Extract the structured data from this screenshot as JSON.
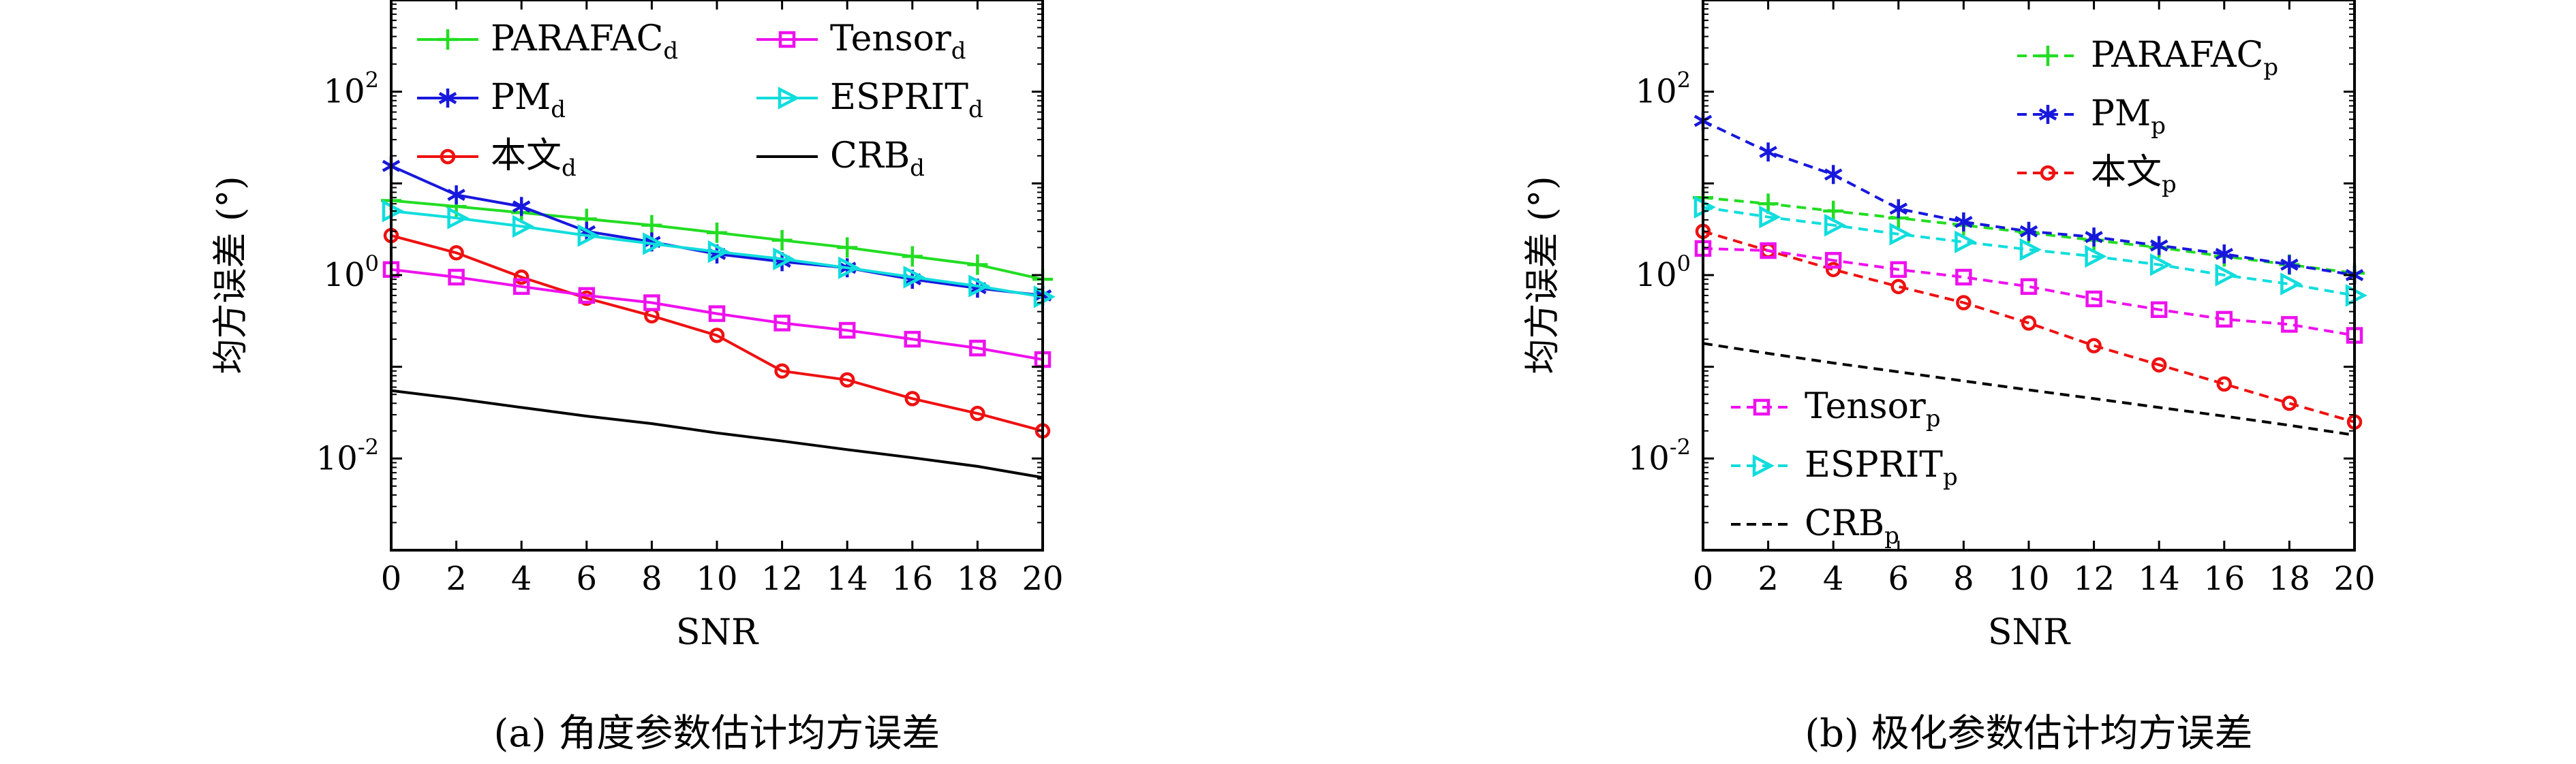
{
  "chart_data": [
    {
      "type": "line",
      "caption": "(a) 角度参数估计均方误差",
      "xlabel": "SNR",
      "ylabel": "均方误差 (°)",
      "x": [
        0,
        2,
        4,
        6,
        8,
        10,
        12,
        14,
        16,
        18,
        20
      ],
      "xticks": [
        "0",
        "2",
        "4",
        "6",
        "8",
        "10",
        "12",
        "14",
        "16",
        "18",
        "20"
      ],
      "xlim": [
        0,
        20
      ],
      "yscale": "log",
      "ylim": [
        0.001,
        1000
      ],
      "yticks": [
        {
          "value": 100,
          "base": "10",
          "exp": "2"
        },
        {
          "value": 1,
          "base": "10",
          "exp": "0"
        },
        {
          "value": 0.01,
          "base": "10",
          "exp": "-2"
        }
      ],
      "legend_position": "top",
      "series": [
        {
          "name": "PARAFAC",
          "sub": "d",
          "color": "#22dd22",
          "marker": "plus",
          "dash": "solid",
          "legend_col": 0,
          "legend_row": 0,
          "values": [
            6.5,
            5.6,
            4.8,
            4.1,
            3.5,
            2.9,
            2.4,
            2.0,
            1.6,
            1.3,
            0.9
          ]
        },
        {
          "name": "PM",
          "sub": "d",
          "color": "#1818dd",
          "marker": "asterisk",
          "dash": "solid",
          "legend_col": 0,
          "legend_row": 1,
          "values": [
            15.5,
            7.5,
            5.6,
            3.0,
            2.3,
            1.7,
            1.4,
            1.2,
            0.9,
            0.72,
            0.6
          ]
        },
        {
          "name": "本文",
          "sub": "d",
          "color": "#ee1111",
          "marker": "circle",
          "dash": "solid",
          "legend_col": 0,
          "legend_row": 2,
          "values": [
            2.7,
            1.75,
            0.95,
            0.56,
            0.36,
            0.22,
            0.09,
            0.072,
            0.045,
            0.031,
            0.02
          ]
        },
        {
          "name": "Tensor",
          "sub": "d",
          "color": "#ee11ee",
          "marker": "square",
          "dash": "solid",
          "legend_col": 1,
          "legend_row": 0,
          "values": [
            1.15,
            0.95,
            0.75,
            0.6,
            0.5,
            0.38,
            0.3,
            0.25,
            0.2,
            0.16,
            0.12
          ]
        },
        {
          "name": "ESPRIT",
          "sub": "d",
          "color": "#11dddd",
          "marker": "triangle",
          "dash": "solid",
          "legend_col": 1,
          "legend_row": 1,
          "values": [
            5.0,
            4.2,
            3.4,
            2.7,
            2.2,
            1.8,
            1.5,
            1.2,
            0.95,
            0.76,
            0.58
          ]
        },
        {
          "name": "CRB",
          "sub": "d",
          "color": "#000000",
          "marker": "none",
          "dash": "solid",
          "legend_col": 1,
          "legend_row": 2,
          "values": [
            0.055,
            0.045,
            0.036,
            0.029,
            0.024,
            0.019,
            0.0155,
            0.0125,
            0.0102,
            0.0082,
            0.0062
          ]
        }
      ]
    },
    {
      "type": "line",
      "caption": "(b) 极化参数估计均方误差",
      "xlabel": "SNR",
      "ylabel": "均方误差 (°)",
      "x": [
        0,
        2,
        4,
        6,
        8,
        10,
        12,
        14,
        16,
        18,
        20
      ],
      "xticks": [
        "0",
        "2",
        "4",
        "6",
        "8",
        "10",
        "12",
        "14",
        "16",
        "18",
        "20"
      ],
      "xlim": [
        0,
        20
      ],
      "yscale": "log",
      "ylim": [
        0.001,
        1000
      ],
      "yticks": [
        {
          "value": 100,
          "base": "10",
          "exp": "2"
        },
        {
          "value": 1,
          "base": "10",
          "exp": "0"
        },
        {
          "value": 0.01,
          "base": "10",
          "exp": "-2"
        }
      ],
      "legend_position": "top-right and bottom-left",
      "series": [
        {
          "name": "PARAFAC",
          "sub": "p",
          "color": "#22dd22",
          "marker": "plus",
          "dash": "dashed",
          "legend_group": "upper",
          "legend_row": 0,
          "values": [
            7.0,
            6.0,
            5.0,
            4.2,
            3.5,
            2.9,
            2.4,
            2.0,
            1.6,
            1.3,
            1.05
          ]
        },
        {
          "name": "PM",
          "sub": "p",
          "color": "#1818dd",
          "marker": "asterisk",
          "dash": "dashed",
          "legend_group": "upper",
          "legend_row": 1,
          "values": [
            48,
            22,
            12.5,
            5.3,
            3.8,
            3.0,
            2.6,
            2.1,
            1.7,
            1.3,
            1.0
          ]
        },
        {
          "name": "本文",
          "sub": "p",
          "color": "#ee1111",
          "marker": "circle",
          "dash": "dashed",
          "legend_group": "upper",
          "legend_row": 2,
          "values": [
            3.0,
            1.85,
            1.15,
            0.75,
            0.5,
            0.3,
            0.17,
            0.105,
            0.065,
            0.04,
            0.025
          ]
        },
        {
          "name": "Tensor",
          "sub": "p",
          "color": "#ee11ee",
          "marker": "square",
          "dash": "dashed",
          "legend_group": "lower",
          "legend_row": 0,
          "values": [
            1.95,
            1.85,
            1.45,
            1.15,
            0.95,
            0.75,
            0.55,
            0.42,
            0.33,
            0.29,
            0.22
          ]
        },
        {
          "name": "ESPRIT",
          "sub": "p",
          "color": "#11dddd",
          "marker": "triangle",
          "dash": "dashed",
          "legend_group": "lower",
          "legend_row": 1,
          "values": [
            5.5,
            4.3,
            3.5,
            2.8,
            2.3,
            1.9,
            1.6,
            1.3,
            1.0,
            0.8,
            0.6
          ]
        },
        {
          "name": "CRB",
          "sub": "p",
          "color": "#000000",
          "marker": "none",
          "dash": "dashed",
          "legend_group": "lower",
          "legend_row": 2,
          "values": [
            0.18,
            0.14,
            0.11,
            0.088,
            0.07,
            0.056,
            0.045,
            0.036,
            0.029,
            0.023,
            0.018
          ]
        }
      ]
    }
  ]
}
